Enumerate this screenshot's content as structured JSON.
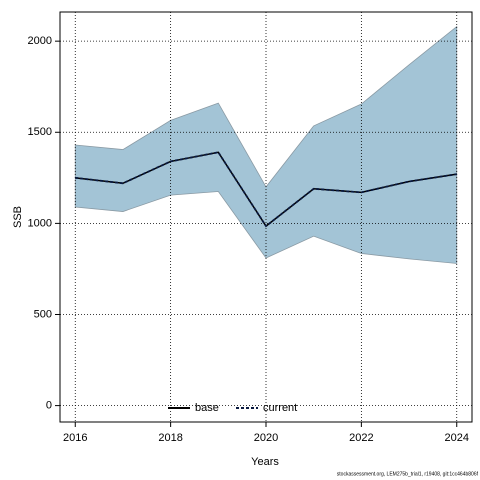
{
  "chart_data": {
    "type": "line",
    "x_label": "Years",
    "y_label": "SSB",
    "footnote": "stockassessment.org, LEM275b_trial1, r19408, git:1cc464b806f",
    "x": [
      2016,
      2017,
      2018,
      2019,
      2020,
      2021,
      2022,
      2023,
      2024
    ],
    "series": [
      {
        "name": "base",
        "color": "#000000",
        "values": [
          1250,
          1220,
          1340,
          1390,
          985,
          1190,
          1170,
          1230,
          1270
        ]
      },
      {
        "name": "current",
        "color": "#0a1a40",
        "dashed": true,
        "values": [
          1250,
          1220,
          1340,
          1390,
          985,
          1190,
          1170,
          1230,
          1270
        ]
      }
    ],
    "band": {
      "color": "#a3c4d6",
      "upper": [
        1430,
        1405,
        1565,
        1660,
        1200,
        1535,
        1655,
        1870,
        2080
      ],
      "lower": [
        1090,
        1065,
        1155,
        1175,
        810,
        930,
        835,
        805,
        780
      ]
    },
    "xlim": [
      2015.68,
      2024.32
    ],
    "xticks": [
      2016,
      2018,
      2020,
      2022,
      2024
    ],
    "ylim": [
      -90,
      2160
    ],
    "yticks": [
      0,
      500,
      1000,
      1500,
      2000
    ],
    "grid": true,
    "legend": "bottom"
  }
}
